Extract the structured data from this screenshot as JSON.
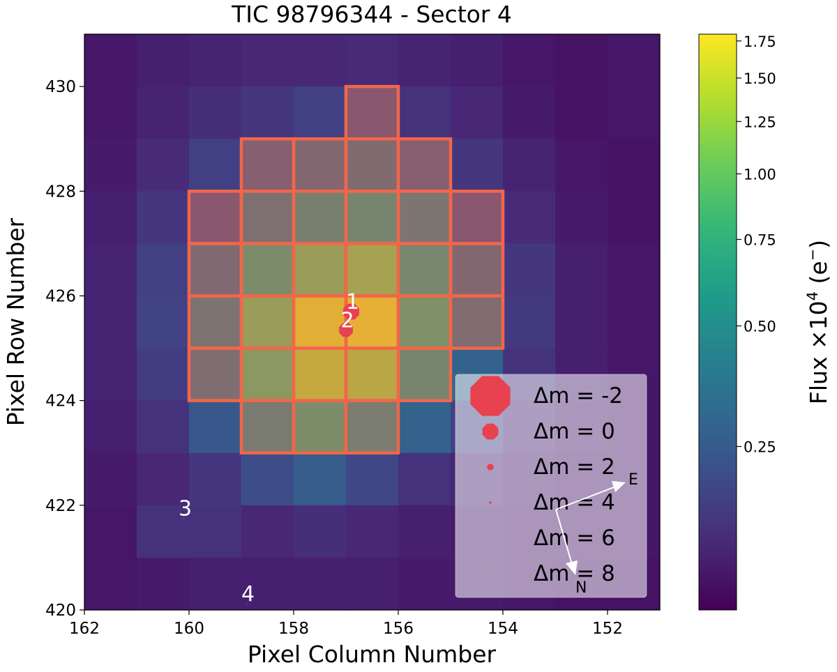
{
  "chart_data": {
    "type": "heatmap",
    "title": "TIC 98796344 - Sector 4",
    "xlabel": "Pixel Column Number",
    "ylabel": "Pixel Row Number",
    "xlim": [
      162,
      151
    ],
    "ylim": [
      420,
      431
    ],
    "xticks": [
      162,
      160,
      158,
      156,
      154,
      152
    ],
    "yticks": [
      420,
      422,
      424,
      426,
      428,
      430
    ],
    "columns": [
      161.5,
      160.5,
      159.5,
      158.5,
      157.5,
      156.5,
      155.5,
      154.5,
      153.5,
      152.5,
      151.5
    ],
    "rows": [
      430.5,
      429.5,
      428.5,
      427.5,
      426.5,
      425.5,
      424.5,
      423.5,
      422.5,
      421.5,
      420.5
    ],
    "flux": [
      [
        0.05,
        0.07,
        0.08,
        0.09,
        0.09,
        0.1,
        0.08,
        0.07,
        0.05,
        0.04,
        0.05
      ],
      [
        0.05,
        0.08,
        0.11,
        0.13,
        0.16,
        0.2,
        0.12,
        0.09,
        0.06,
        0.04,
        0.05
      ],
      [
        0.06,
        0.1,
        0.16,
        0.25,
        0.3,
        0.33,
        0.24,
        0.13,
        0.08,
        0.05,
        0.04
      ],
      [
        0.07,
        0.13,
        0.2,
        0.38,
        0.52,
        0.58,
        0.42,
        0.2,
        0.1,
        0.06,
        0.04
      ],
      [
        0.08,
        0.16,
        0.32,
        0.66,
        0.95,
        1.05,
        0.6,
        0.3,
        0.13,
        0.07,
        0.05
      ],
      [
        0.08,
        0.17,
        0.4,
        0.95,
        1.55,
        1.6,
        0.72,
        0.34,
        0.14,
        0.07,
        0.05
      ],
      [
        0.08,
        0.15,
        0.36,
        0.85,
        1.3,
        1.2,
        0.58,
        0.28,
        0.12,
        0.07,
        0.05
      ],
      [
        0.07,
        0.12,
        0.24,
        0.48,
        0.68,
        0.5,
        0.28,
        0.16,
        0.09,
        0.06,
        0.05
      ],
      [
        0.06,
        0.09,
        0.13,
        0.2,
        0.26,
        0.18,
        0.12,
        0.09,
        0.06,
        0.05,
        0.05
      ],
      [
        0.05,
        0.12,
        0.12,
        0.09,
        0.11,
        0.09,
        0.07,
        0.06,
        0.05,
        0.05,
        0.05
      ],
      [
        0.05,
        0.06,
        0.07,
        0.07,
        0.07,
        0.07,
        0.06,
        0.06,
        0.05,
        0.04,
        0.04
      ]
    ],
    "aperture_pixels": [
      [
        156.5,
        429.5
      ],
      [
        158.5,
        428.5
      ],
      [
        157.5,
        428.5
      ],
      [
        156.5,
        428.5
      ],
      [
        155.5,
        428.5
      ],
      [
        159.5,
        427.5
      ],
      [
        158.5,
        427.5
      ],
      [
        157.5,
        427.5
      ],
      [
        156.5,
        427.5
      ],
      [
        155.5,
        427.5
      ],
      [
        154.5,
        427.5
      ],
      [
        159.5,
        426.5
      ],
      [
        158.5,
        426.5
      ],
      [
        157.5,
        426.5
      ],
      [
        156.5,
        426.5
      ],
      [
        155.5,
        426.5
      ],
      [
        154.5,
        426.5
      ],
      [
        159.5,
        425.5
      ],
      [
        158.5,
        425.5
      ],
      [
        157.5,
        425.5
      ],
      [
        156.5,
        425.5
      ],
      [
        155.5,
        425.5
      ],
      [
        154.5,
        425.5
      ],
      [
        159.5,
        424.5
      ],
      [
        158.5,
        424.5
      ],
      [
        157.5,
        424.5
      ],
      [
        156.5,
        424.5
      ],
      [
        155.5,
        424.5
      ],
      [
        158.5,
        423.5
      ],
      [
        157.5,
        423.5
      ],
      [
        156.5,
        423.5
      ]
    ],
    "sources": [
      {
        "label": "1",
        "col": 156.9,
        "row": 425.7,
        "dm": 0
      },
      {
        "label": "2",
        "col": 157.0,
        "row": 425.35,
        "dm": 0.3
      },
      {
        "label": "3",
        "col": 160.1,
        "row": 421.75,
        "dm": 9
      },
      {
        "label": "4",
        "col": 158.9,
        "row": 420.12,
        "dm": 9.5
      }
    ],
    "colorbar": {
      "label": "Flux ×10",
      "label_exponent": "4",
      "label_unit": " (e",
      "label_unit_sup": "−",
      "label_close": ")",
      "vmin": 0.0,
      "vmax": 1.8,
      "ticks": [
        0.25,
        0.5,
        0.75,
        1.0,
        1.25,
        1.5,
        1.75
      ],
      "tick_labels": [
        "0.25",
        "0.50",
        "0.75",
        "1.00",
        "1.25",
        "1.50",
        "1.75"
      ]
    },
    "legend": {
      "prefix": "Δm = ",
      "entries": [
        {
          "dm": -2,
          "label": " -2"
        },
        {
          "dm": 0,
          "label": " 0"
        },
        {
          "dm": 2,
          "label": " 2"
        },
        {
          "dm": 4,
          "label": " 4"
        },
        {
          "dm": 6,
          "label": " 6"
        },
        {
          "dm": 8,
          "label": " 8"
        }
      ]
    },
    "compass": {
      "east_label": "E",
      "north_label": "N"
    }
  },
  "colors": {
    "aperture": "#f2664a",
    "source": "#e8414f",
    "legend_bg": "#ffffff"
  }
}
